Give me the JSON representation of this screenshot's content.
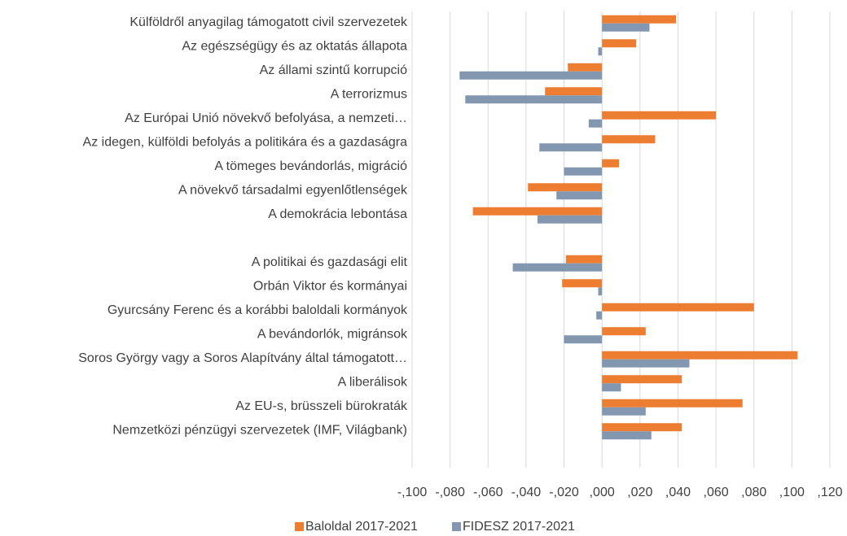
{
  "chart_data": {
    "type": "bar",
    "orientation": "horizontal",
    "categories": [
      "Külföldről anyagilag támogatott civil szervezetek",
      "Az egészségügy és az oktatás állapota",
      "Az állami szintű korrupció",
      "A terrorizmus",
      "Az Európai Unió növekvő befolyása, a nemzeti…",
      "Az idegen, külföldi befolyás a politikára és a gazdaságra",
      "A tömeges bevándorlás, migráció",
      "A növekvő társadalmi egyenlőtlenségek",
      "A demokrácia  lebontása",
      null,
      "A politikai és gazdasági elit",
      "Orbán Viktor és kormányai",
      "Gyurcsány Ferenc és a korábbi baloldali kormányok",
      "A bevándorlók, migránsok",
      "Soros György vagy a Soros Alapítvány által támogatott…",
      "A liberálisok",
      "Az EU-s, brüsszeli bürokraták",
      "Nemzetközi pénzügyi szervezetek (IMF, Világbank)"
    ],
    "series": [
      {
        "name": "Baloldal 2017-2021",
        "color": "#ed7d31",
        "values": [
          0.039,
          0.018,
          -0.018,
          -0.03,
          0.06,
          0.028,
          0.009,
          -0.039,
          -0.068,
          null,
          -0.019,
          -0.021,
          0.08,
          0.023,
          0.103,
          0.042,
          0.074,
          0.042
        ]
      },
      {
        "name": "FIDESZ 2017-2021",
        "color": "#8497b0",
        "values": [
          0.025,
          -0.002,
          -0.075,
          -0.072,
          -0.007,
          -0.033,
          -0.02,
          -0.024,
          -0.034,
          null,
          -0.047,
          -0.002,
          -0.003,
          -0.02,
          0.046,
          0.01,
          0.023,
          0.026
        ]
      }
    ],
    "xlim": [
      -0.1,
      0.12
    ],
    "xticks": [
      {
        "value": -0.1,
        "label": "-,100"
      },
      {
        "value": -0.08,
        "label": "-,080"
      },
      {
        "value": -0.06,
        "label": "-,060"
      },
      {
        "value": -0.04,
        "label": "-,040"
      },
      {
        "value": -0.02,
        "label": "-,020"
      },
      {
        "value": 0,
        "label": ",000"
      },
      {
        "value": 0.02,
        "label": ",020"
      },
      {
        "value": 0.04,
        "label": ",040"
      },
      {
        "value": 0.06,
        "label": ",060"
      },
      {
        "value": 0.08,
        "label": ",080"
      },
      {
        "value": 0.1,
        "label": ",100"
      },
      {
        "value": 0.12,
        "label": ",120"
      }
    ],
    "grid": true,
    "legend": "bottom"
  }
}
